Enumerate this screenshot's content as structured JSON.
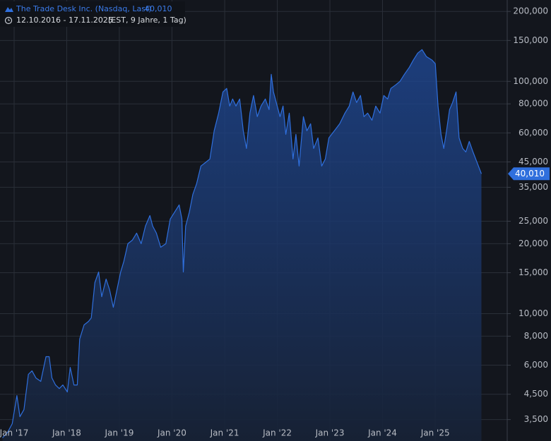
{
  "chart_data": {
    "type": "area",
    "log_y": true,
    "grid": true,
    "range_label": "12.10.2016 - 17.11.2025",
    "range_note": "(EST, 9 Jahre, 1 Tag)",
    "last_price_label": "40,010",
    "x": [
      "2016-10-12",
      "2016-11-18",
      "2016-12-19",
      "2017-01-20",
      "2017-02-10",
      "2017-03-10",
      "2017-04-10",
      "2017-05-05",
      "2017-06-01",
      "2017-07-05",
      "2017-08-10",
      "2017-09-01",
      "2017-09-20",
      "2017-10-15",
      "2017-11-10",
      "2017-12-05",
      "2018-01-05",
      "2018-01-25",
      "2018-02-20",
      "2018-03-15",
      "2018-04-01",
      "2018-05-01",
      "2018-06-01",
      "2018-06-20",
      "2018-07-15",
      "2018-08-10",
      "2018-09-01",
      "2018-10-01",
      "2018-10-25",
      "2018-11-20",
      "2019-01-10",
      "2019-02-01",
      "2019-03-01",
      "2019-04-01",
      "2019-05-01",
      "2019-06-01",
      "2019-07-01",
      "2019-08-01",
      "2019-08-20",
      "2019-09-15",
      "2019-10-15",
      "2019-11-20",
      "2019-12-20",
      "2020-01-20",
      "2020-02-20",
      "2020-03-10",
      "2020-03-20",
      "2020-04-05",
      "2020-05-01",
      "2020-05-25",
      "2020-06-20",
      "2020-07-20",
      "2020-08-20",
      "2020-09-20",
      "2020-10-20",
      "2020-11-20",
      "2020-12-20",
      "2021-01-15",
      "2021-02-05",
      "2021-02-25",
      "2021-03-20",
      "2021-04-15",
      "2021-05-10",
      "2021-06-01",
      "2021-06-25",
      "2021-07-20",
      "2021-08-15",
      "2021-09-10",
      "2021-10-10",
      "2021-11-05",
      "2021-11-20",
      "2021-12-05",
      "2021-12-25",
      "2022-01-20",
      "2022-02-10",
      "2022-03-01",
      "2022-03-25",
      "2022-04-20",
      "2022-05-10",
      "2022-06-01",
      "2022-07-01",
      "2022-07-25",
      "2022-08-20",
      "2022-09-10",
      "2022-10-10",
      "2022-11-05",
      "2022-11-30",
      "2022-12-25",
      "2023-02-01",
      "2023-03-10",
      "2023-04-15",
      "2023-05-15",
      "2023-06-10",
      "2023-07-05",
      "2023-08-01",
      "2023-08-25",
      "2023-09-20",
      "2023-10-20",
      "2023-11-15",
      "2023-12-15",
      "2024-01-10",
      "2024-02-05",
      "2024-02-28",
      "2024-04-01",
      "2024-05-01",
      "2024-06-01",
      "2024-07-05",
      "2024-08-01",
      "2024-09-01",
      "2024-10-01",
      "2024-11-01",
      "2024-12-10",
      "2025-01-01",
      "2025-01-20",
      "2025-02-10",
      "2025-03-01",
      "2025-03-20",
      "2025-04-10",
      "2025-05-01",
      "2025-05-25",
      "2025-06-15",
      "2025-07-10",
      "2025-08-01",
      "2025-08-25",
      "2025-09-20",
      "2025-11-17"
    ],
    "series": [
      {
        "name": "The Trade Desk Inc. (Nasdaq, Last)",
        "color": "#2f6fdd",
        "values": [
          2920,
          3090,
          3360,
          4440,
          3600,
          3860,
          5480,
          5670,
          5290,
          5110,
          6530,
          6530,
          5290,
          4930,
          4760,
          4930,
          4600,
          5870,
          4930,
          4930,
          7770,
          8940,
          9260,
          9590,
          13610,
          15110,
          11830,
          14090,
          12690,
          10650,
          15110,
          16790,
          20000,
          20710,
          22220,
          20000,
          23820,
          26450,
          23820,
          22220,
          19310,
          20000,
          25550,
          27400,
          29390,
          25550,
          15110,
          23820,
          27400,
          32640,
          36240,
          43190,
          44720,
          46330,
          61270,
          72990,
          90030,
          93240,
          78290,
          83950,
          78290,
          83950,
          61270,
          51430,
          72990,
          86940,
          70470,
          78290,
          83950,
          75580,
          107250,
          90030,
          81060,
          70470,
          78290,
          59160,
          72990,
          46330,
          59160,
          43190,
          70470,
          61270,
          65690,
          51430,
          57120,
          43190,
          46330,
          57120,
          61270,
          65690,
          72990,
          78290,
          90030,
          81060,
          86940,
          70470,
          72990,
          68040,
          78290,
          72990,
          86940,
          83950,
          93240,
          96560,
          100000,
          107250,
          115040,
          123380,
          132310,
          137020,
          127780,
          123380,
          119120,
          78290,
          59160,
          51430,
          61270,
          75580,
          81060,
          90030,
          57120,
          51430,
          49660,
          55160,
          49660,
          40010
        ]
      }
    ],
    "xlim": [
      "2016-09-25",
      "2026-05-15"
    ],
    "xticks": [
      {
        "value": "2017-01-01",
        "label": "Jan '17"
      },
      {
        "value": "2018-01-01",
        "label": "Jan '18"
      },
      {
        "value": "2019-01-01",
        "label": "Jan '19"
      },
      {
        "value": "2020-01-01",
        "label": "Jan '20"
      },
      {
        "value": "2021-01-01",
        "label": "Jan '21"
      },
      {
        "value": "2022-01-01",
        "label": "Jan '22"
      },
      {
        "value": "2023-01-01",
        "label": "Jan '23"
      },
      {
        "value": "2024-01-01",
        "label": "Jan '24"
      },
      {
        "value": "2025-01-01",
        "label": "Jan '25"
      }
    ],
    "ylim": [
      2830,
      224000
    ],
    "yticks": [
      {
        "value": 200000,
        "label": "200,000"
      },
      {
        "value": 150000,
        "label": "150,000"
      },
      {
        "value": 100000,
        "label": "100,000"
      },
      {
        "value": 80000,
        "label": "80,000"
      },
      {
        "value": 60000,
        "label": "60,000"
      },
      {
        "value": 45000,
        "label": "45,000"
      },
      {
        "value": 35000,
        "label": "35,000"
      },
      {
        "value": 25000,
        "label": "25,000"
      },
      {
        "value": 20000,
        "label": "20,000"
      },
      {
        "value": 15000,
        "label": "15,000"
      },
      {
        "value": 10000,
        "label": "10,000"
      },
      {
        "value": 8000,
        "label": "8,000"
      },
      {
        "value": 6000,
        "label": "6,000"
      },
      {
        "value": 4500,
        "label": "4,500"
      },
      {
        "value": 3500,
        "label": "3,500"
      }
    ]
  }
}
